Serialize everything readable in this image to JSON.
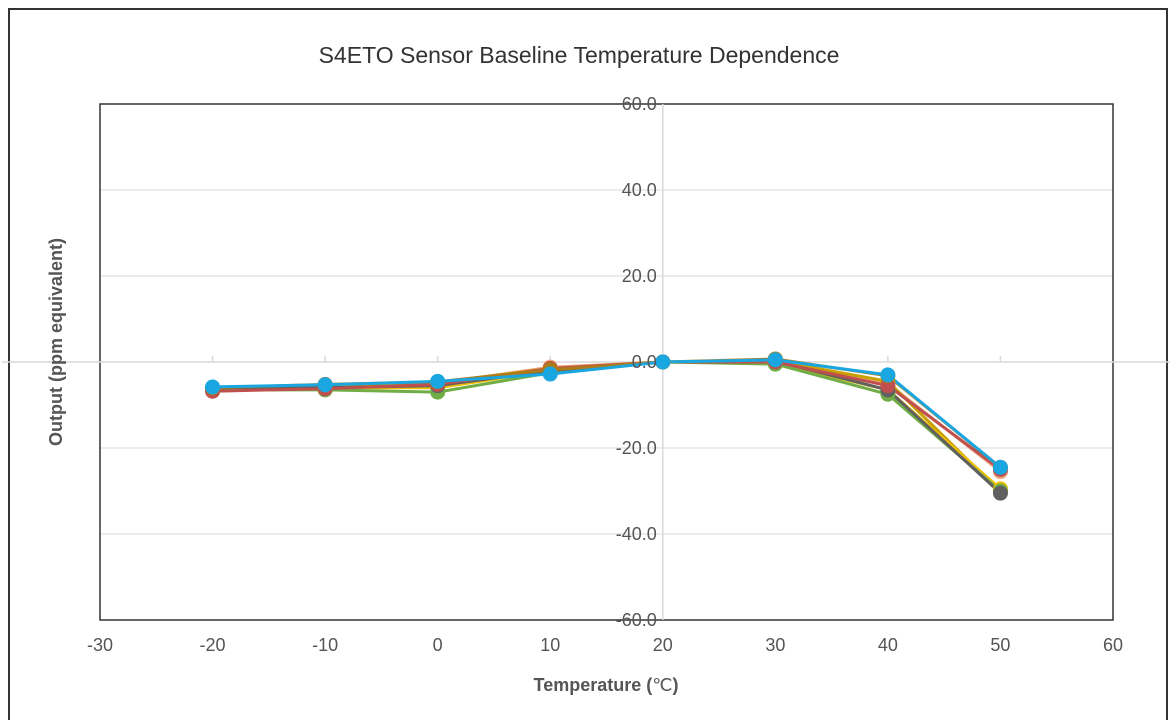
{
  "chart_data": {
    "type": "line",
    "title": "S4ETO Sensor Baseline Temperature Dependence",
    "xlabel": "Temperature (",
    "xlabel_unit": "℃",
    "xlabel_end": ")",
    "ylabel": "Output (ppm equivalent)",
    "xlim": [
      -30,
      60
    ],
    "ylim": [
      -60,
      60
    ],
    "x_ticks": [
      "-30",
      "-20",
      "-10",
      "0",
      "10",
      "20",
      "30",
      "40",
      "50",
      "60"
    ],
    "y_ticks": [
      "60.0",
      "40.0",
      "20.0",
      "0.0",
      "-20.0",
      "-40.0",
      "-60.0"
    ],
    "grid": true,
    "x": [
      -20,
      -10,
      0,
      10,
      20,
      30,
      40,
      50
    ],
    "series": [
      {
        "color": "#f0a880",
        "values": [
          -6.8,
          -6.0,
          -5.0,
          -1.2,
          0,
          0.0,
          -5.0,
          -25.5
        ]
      },
      {
        "color": "#c8a000",
        "values": [
          -6.2,
          -5.5,
          -4.8,
          -1.5,
          0,
          0.3,
          -4.5,
          -30.2
        ]
      },
      {
        "color": "#f0c000",
        "values": [
          -6.0,
          -6.0,
          -6.0,
          -2.0,
          0,
          -0.2,
          -6.5,
          -29.5
        ]
      },
      {
        "color": "#70ad47",
        "values": [
          -6.5,
          -6.5,
          -7.0,
          -2.5,
          0,
          -0.5,
          -7.5,
          -30.0
        ]
      },
      {
        "color": "#606060",
        "values": [
          -6.0,
          -6.0,
          -5.5,
          -2.0,
          0,
          0.2,
          -6.5,
          -30.5
        ]
      },
      {
        "color": "#c0504d",
        "values": [
          -6.8,
          -6.2,
          -5.2,
          -1.5,
          0,
          0.0,
          -5.5,
          -25.0
        ]
      },
      {
        "color": "#ad7c18",
        "values": [
          -6.0,
          -5.2,
          -4.6,
          -1.8,
          0,
          0.7,
          -3.2,
          -24.5
        ]
      },
      {
        "color": "#1aa6e0",
        "values": [
          -5.8,
          -5.3,
          -4.5,
          -2.8,
          0,
          0.5,
          -3.0,
          -24.5
        ]
      }
    ]
  }
}
